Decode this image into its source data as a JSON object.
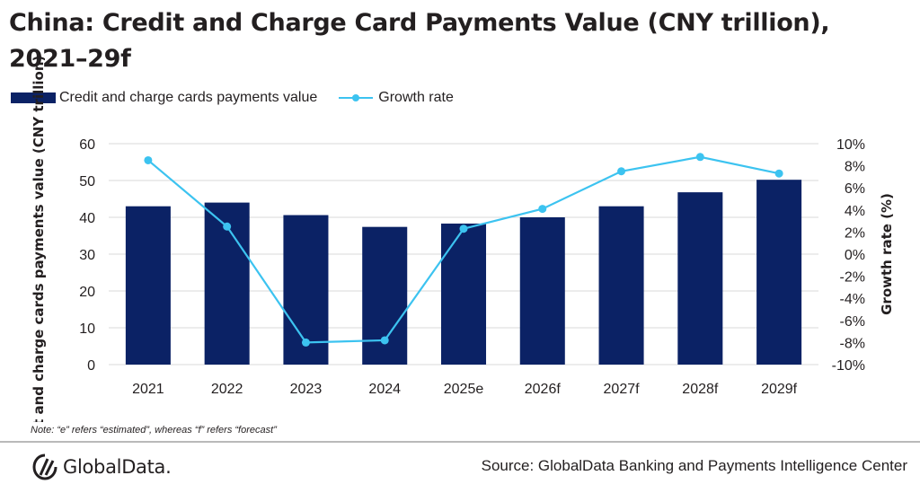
{
  "title": "China: Credit and Charge Card Payments Value (CNY trillion), 2021–29f",
  "note": "Note: “e” refers “estimated”, whereas “f” refers “forecast”",
  "source": "Source: GlobalData Banking and Payments Intelligence Center",
  "logo_text": "GlobalData.",
  "colors": {
    "bar": "#0b2265",
    "line": "#3cc3f0",
    "grid": "#d9d9d9"
  },
  "chart_data": {
    "type": "bar",
    "title": "China: Credit and Charge Card Payments Value (CNY trillion), 2021–29f",
    "categories": [
      "2021",
      "2022",
      "2023",
      "2024",
      "2025e",
      "2026f",
      "2027f",
      "2028f",
      "2029f"
    ],
    "series": [
      {
        "name": "Credit and charge cards payments value",
        "type": "bar",
        "axis": "left",
        "values": [
          43,
          44,
          40.6,
          37.4,
          38.3,
          40,
          43,
          46.8,
          50.2
        ]
      },
      {
        "name": "Growth rate",
        "type": "line",
        "axis": "right",
        "values": [
          8.5,
          2.5,
          -8,
          -7.8,
          2.3,
          4.1,
          7.5,
          8.8,
          7.3
        ]
      }
    ],
    "ylabel": "Credit and charge cards payments value (CNY trillion)",
    "y2label": "Growth rate (%)",
    "ylim": [
      0,
      60
    ],
    "y2lim": [
      -10,
      10
    ],
    "yticks": [
      "0",
      "10",
      "20",
      "30",
      "40",
      "50",
      "60"
    ],
    "y2ticks": [
      "-10%",
      "-8%",
      "-6%",
      "-4%",
      "-2%",
      "0%",
      "2%",
      "4%",
      "6%",
      "8%",
      "10%"
    ],
    "grid": true,
    "legend": "top-left"
  }
}
